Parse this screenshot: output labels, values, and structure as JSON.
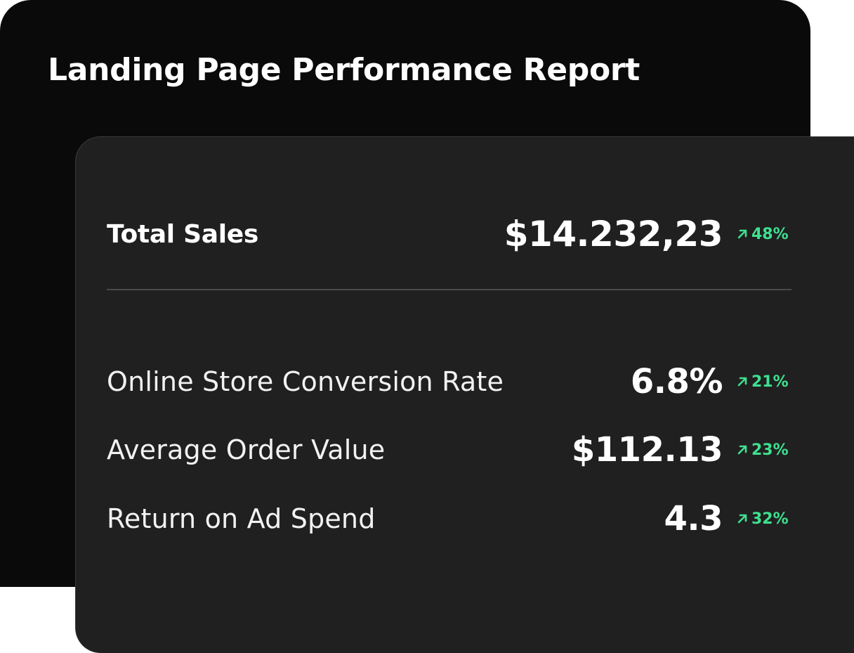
{
  "report": {
    "title": "Landing Page Performance Report"
  },
  "total_sales": {
    "label": "Total Sales",
    "value": "$14.232,23",
    "change": "48%",
    "trend_icon": "arrow-up-right-icon"
  },
  "metrics": [
    {
      "label": "Online Store Conversion Rate",
      "value": "6.8%",
      "change": "21%",
      "trend_icon": "arrow-up-right-icon"
    },
    {
      "label": "Average Order Value",
      "value": "$112.13",
      "change": "23%",
      "trend_icon": "arrow-up-right-icon"
    },
    {
      "label": "Return on Ad Spend",
      "value": "4.3",
      "change": "32%",
      "trend_icon": "arrow-up-right-icon"
    }
  ],
  "colors": {
    "back_card": "#0a0a0a",
    "front_card": "#202020",
    "positive": "#3ee08f",
    "text": "#ffffff"
  }
}
